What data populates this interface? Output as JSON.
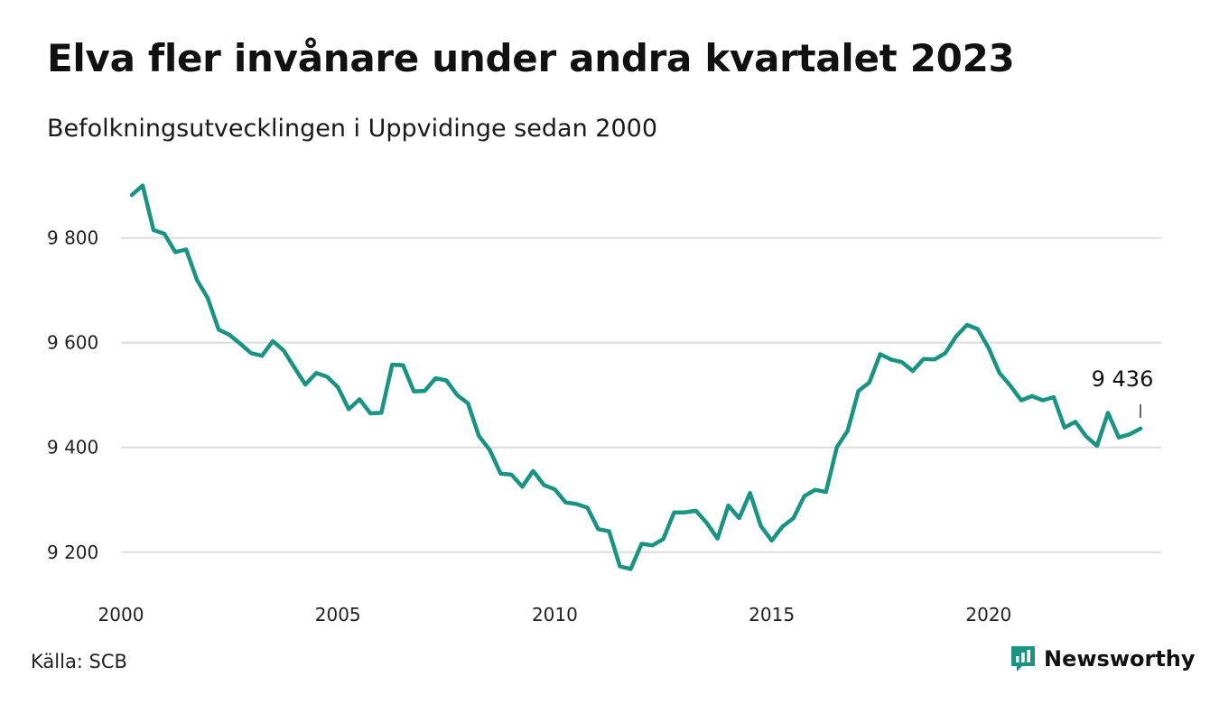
{
  "colors": {
    "line": "#1a9383",
    "grid": "#dddddd",
    "brand": "#1a9383"
  },
  "footer": {
    "source": "Källa: SCB",
    "brand": "Newsworthy",
    "brand_icon": "newsworthy-logo-icon"
  },
  "chart_data": {
    "type": "line",
    "title": "Elva fler invånare under andra kvartalet 2023",
    "subtitle": "Befolkningsutvecklingen i Uppvidinge sedan 2000",
    "xlabel": "",
    "ylabel": "",
    "xlim": [
      2000,
      2023.75
    ],
    "ylim": [
      9160,
      9920
    ],
    "grid": true,
    "x_ticks": [
      2000,
      2005,
      2010,
      2015,
      2020
    ],
    "x_tick_labels": [
      "2000",
      "2005",
      "2010",
      "2015",
      "2020"
    ],
    "y_ticks": [
      9200,
      9400,
      9600,
      9800
    ],
    "y_tick_labels": [
      "9 200",
      "9 400",
      "9 600",
      "9 800"
    ],
    "series": [
      {
        "start": "2000-Q1",
        "x": [
          2000.25,
          2000.5,
          2000.75,
          2001.0,
          2001.25,
          2001.5,
          2001.75,
          2002.0,
          2002.25,
          2002.5,
          2002.75,
          2003.0,
          2003.25,
          2003.5,
          2003.75,
          2004.0,
          2004.25,
          2004.5,
          2004.75,
          2005.0,
          2005.25,
          2005.5,
          2005.75,
          2006.0,
          2006.25,
          2006.5,
          2006.75,
          2007.0,
          2007.25,
          2007.5,
          2007.75,
          2008.0,
          2008.25,
          2008.5,
          2008.75,
          2009.0,
          2009.25,
          2009.5,
          2009.75,
          2010.0,
          2010.25,
          2010.5,
          2010.75,
          2011.0,
          2011.25,
          2011.5,
          2011.75,
          2012.0,
          2012.25,
          2012.5,
          2012.75,
          2013.0,
          2013.25,
          2013.5,
          2013.75,
          2014.0,
          2014.25,
          2014.5,
          2014.75,
          2015.0,
          2015.25,
          2015.5,
          2015.75,
          2016.0,
          2016.25,
          2016.5,
          2016.75,
          2017.0,
          2017.25,
          2017.5,
          2017.75,
          2018.0,
          2018.25,
          2018.5,
          2018.75,
          2019.0,
          2019.25,
          2019.5,
          2019.75,
          2020.0,
          2020.25,
          2020.5,
          2020.75,
          2021.0,
          2021.25,
          2021.5,
          2021.75,
          2022.0,
          2022.25,
          2022.5,
          2022.75,
          2023.0,
          2023.25,
          2023.5
        ],
        "values": [
          9882,
          9900,
          9815,
          9808,
          9773,
          9778,
          9720,
          9685,
          9625,
          9615,
          9598,
          9580,
          9575,
          9603,
          9585,
          9552,
          9520,
          9542,
          9535,
          9515,
          9473,
          9492,
          9465,
          9466,
          9558,
          9557,
          9507,
          9508,
          9532,
          9528,
          9500,
          9484,
          9422,
          9395,
          9350,
          9348,
          9325,
          9355,
          9328,
          9320,
          9295,
          9292,
          9285,
          9244,
          9240,
          9173,
          9168,
          9216,
          9213,
          9225,
          9276,
          9276,
          9279,
          9256,
          9226,
          9289,
          9265,
          9313,
          9250,
          9222,
          9249,
          9265,
          9307,
          9319,
          9315,
          9400,
          9432,
          9508,
          9524,
          9578,
          9568,
          9563,
          9546,
          9569,
          9568,
          9580,
          9612,
          9634,
          9626,
          9590,
          9542,
          9518,
          9490,
          9498,
          9490,
          9496,
          9438,
          9449,
          9421,
          9403,
          9466,
          9419,
          9425,
          9436
        ]
      }
    ],
    "annotation": {
      "label": "9 436",
      "x": 2023.5,
      "y": 9436
    }
  }
}
